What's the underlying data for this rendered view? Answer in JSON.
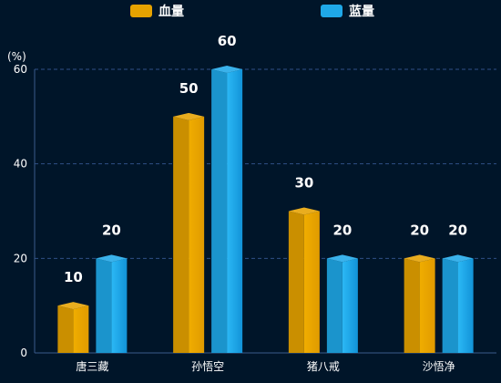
{
  "chart_data": {
    "type": "bar",
    "categories": [
      "唐三藏",
      "孙悟空",
      "猪八戒",
      "沙悟净"
    ],
    "series": [
      {
        "name": "血量",
        "values": [
          10,
          50,
          30,
          20
        ],
        "color": "#e6a200"
      },
      {
        "name": "蓝量",
        "values": [
          20,
          60,
          20,
          20
        ],
        "color": "#1fa8e8"
      }
    ],
    "ylabel": "(%)",
    "ylim": [
      0,
      60
    ],
    "yticks": [
      0,
      20,
      40,
      60
    ],
    "grid": true,
    "legend": "top-center",
    "data_labels": true
  }
}
